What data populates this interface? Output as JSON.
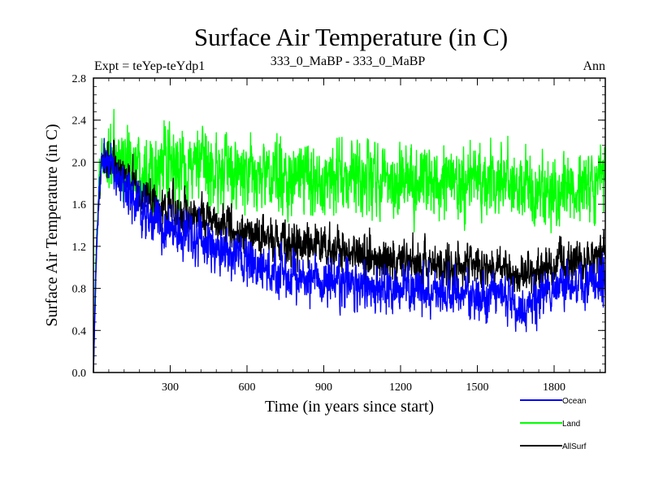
{
  "chart_data": {
    "type": "line",
    "title": "Surface Air Temperature (in C)",
    "subtitle_left": "Expt = teYep-teYdp1",
    "subtitle_center": "333_0_MaBP - 333_0_MaBP",
    "subtitle_right": "Ann",
    "xlabel": "Time (in years since start)",
    "ylabel": "Surface Air Temperature (in C)",
    "xlim": [
      0,
      2000
    ],
    "ylim": [
      0.0,
      2.8
    ],
    "x_ticks": [
      300,
      600,
      900,
      1200,
      1500,
      1800
    ],
    "x_tick_labels": [
      "300",
      "600",
      "900",
      "1200",
      "1500",
      "1800"
    ],
    "y_ticks": [
      0.0,
      0.4,
      0.8,
      1.2,
      1.6,
      2.0,
      2.4,
      2.8
    ],
    "y_tick_labels": [
      "0.0",
      "0.4",
      "0.8",
      "1.2",
      "1.6",
      "2.0",
      "2.4",
      "2.8"
    ],
    "legend_position": "bottom-right, below plot",
    "series": [
      {
        "name": "Land",
        "color": "#00ff00",
        "x": [
          0,
          5,
          10,
          20,
          30,
          40,
          50,
          60,
          80,
          100,
          150,
          200,
          250,
          300,
          400,
          500,
          600,
          700,
          800,
          900,
          1000,
          1100,
          1200,
          1300,
          1400,
          1500,
          1600,
          1700,
          1800,
          1900,
          2000
        ],
        "values": [
          0.0,
          0.6,
          1.1,
          1.7,
          1.95,
          2.0,
          2.05,
          2.05,
          2.02,
          2.0,
          2.0,
          1.98,
          1.95,
          1.93,
          1.97,
          1.9,
          1.85,
          1.86,
          1.84,
          1.85,
          1.83,
          1.85,
          1.84,
          1.82,
          1.8,
          1.83,
          1.8,
          1.72,
          1.72,
          1.74,
          1.78
        ],
        "noise": 0.16
      },
      {
        "name": "AllSurf",
        "color": "#000000",
        "x": [
          0,
          5,
          10,
          20,
          30,
          40,
          50,
          60,
          80,
          100,
          150,
          200,
          250,
          300,
          400,
          500,
          600,
          700,
          800,
          900,
          1000,
          1100,
          1200,
          1300,
          1400,
          1500,
          1600,
          1650,
          1680,
          1700,
          1800,
          1900,
          2000
        ],
        "values": [
          0.0,
          0.5,
          1.0,
          1.6,
          1.9,
          2.0,
          2.05,
          2.05,
          2.0,
          1.92,
          1.78,
          1.68,
          1.6,
          1.55,
          1.5,
          1.42,
          1.3,
          1.28,
          1.22,
          1.2,
          1.12,
          1.08,
          1.06,
          1.03,
          1.0,
          1.02,
          1.0,
          0.94,
          0.9,
          0.95,
          1.02,
          1.05,
          1.12
        ],
        "noise": 0.09
      },
      {
        "name": "Ocean",
        "color": "#0000ff",
        "x": [
          0,
          5,
          10,
          20,
          30,
          40,
          50,
          60,
          80,
          100,
          150,
          200,
          250,
          300,
          400,
          500,
          600,
          700,
          800,
          900,
          1000,
          1100,
          1200,
          1300,
          1400,
          1500,
          1600,
          1650,
          1680,
          1700,
          1800,
          1900,
          2000
        ],
        "values": [
          0.0,
          0.5,
          1.0,
          1.6,
          1.9,
          2.0,
          2.05,
          2.02,
          1.95,
          1.85,
          1.65,
          1.52,
          1.42,
          1.36,
          1.28,
          1.15,
          1.02,
          0.95,
          0.9,
          0.87,
          0.83,
          0.8,
          0.8,
          0.77,
          0.74,
          0.75,
          0.72,
          0.62,
          0.58,
          0.66,
          0.78,
          0.84,
          0.9
        ],
        "noise": 0.1
      }
    ]
  }
}
